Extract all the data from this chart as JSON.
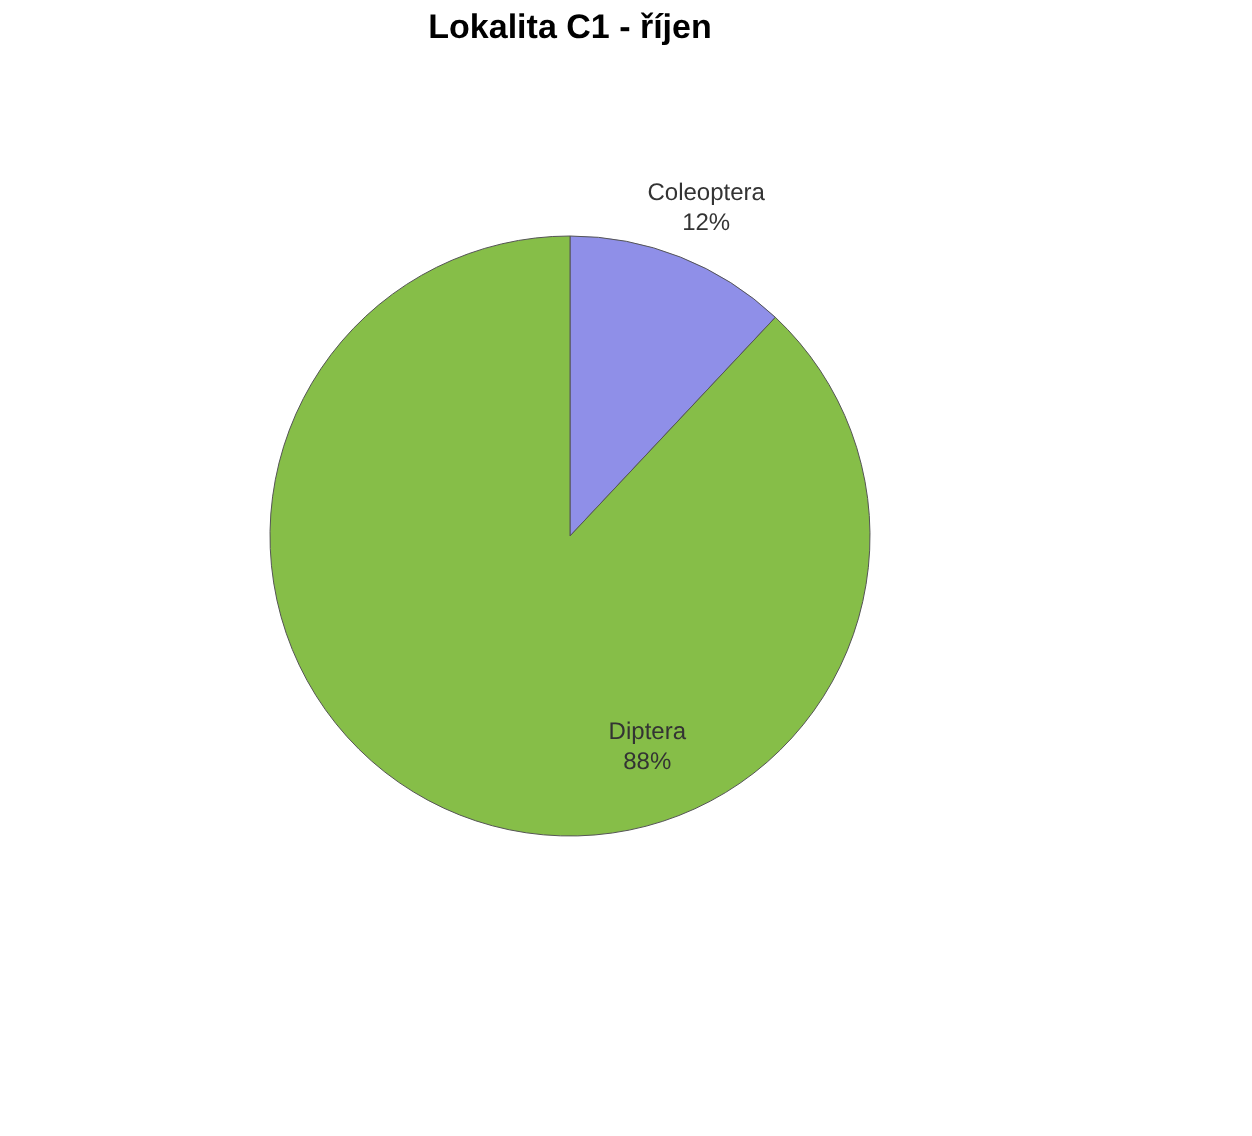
{
  "chart_data": {
    "type": "pie",
    "title": "Lokalita C1 - říjen",
    "categories": [
      "Coleoptera",
      "Diptera"
    ],
    "values": [
      12,
      88
    ],
    "value_labels": [
      "12%",
      "88%"
    ],
    "colors": [
      "#8f8fe8",
      "#86be48"
    ],
    "legend": false
  }
}
